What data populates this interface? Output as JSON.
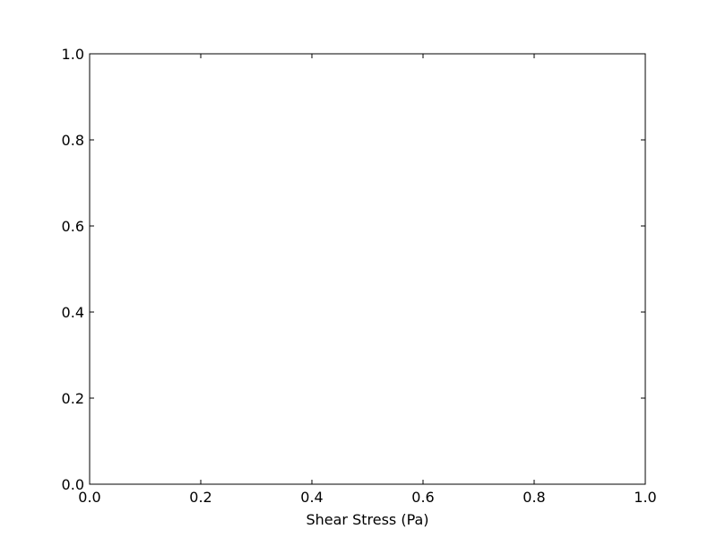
{
  "chart_data": {
    "type": "scatter",
    "title": "",
    "xlabel": "Shear Stress (Pa)",
    "ylabel": "",
    "xlim": [
      0.0,
      1.0
    ],
    "ylim": [
      0.0,
      1.0
    ],
    "x_ticks": [
      "0.0",
      "0.2",
      "0.4",
      "0.6",
      "0.8",
      "1.0"
    ],
    "y_ticks": [
      "0.0",
      "0.2",
      "0.4",
      "0.6",
      "0.8",
      "1.0"
    ],
    "grid": false,
    "series": []
  },
  "colors": {
    "axes": "#000000",
    "background": "#ffffff"
  }
}
